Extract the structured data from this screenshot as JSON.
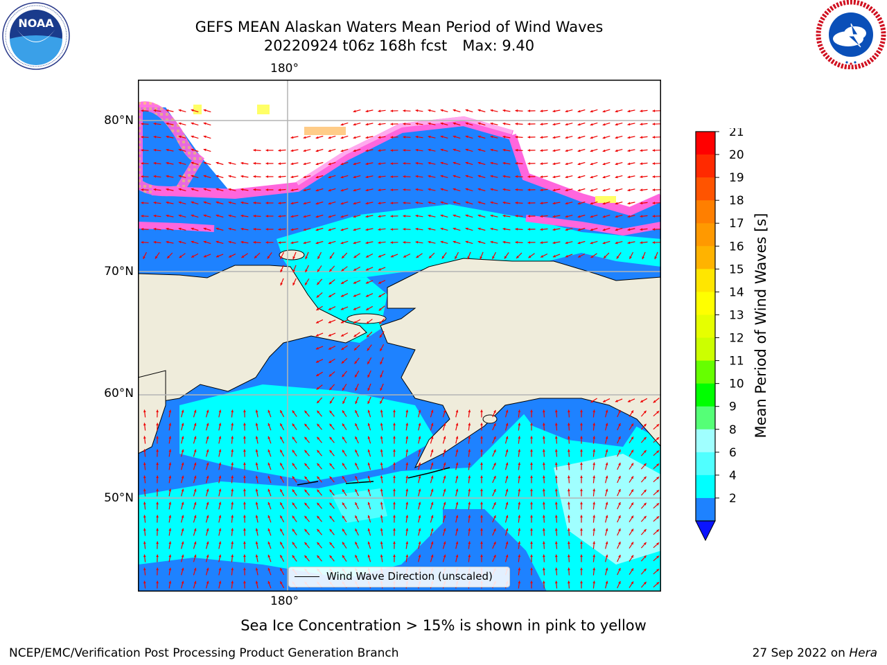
{
  "header": {
    "title_line1": "GEFS MEAN Alaskan Waters Mean Period of Wind Waves",
    "title_date": "20220924 t06z 168h fcst",
    "title_max": "Max: 9.40"
  },
  "logos": {
    "left": {
      "name": "noaa-logo",
      "text": "NOAA",
      "ring_text": "NATIONAL OCEANIC AND ATMOSPHERIC ADMINISTRATION · U.S. DEPARTMENT OF COMMERCE"
    },
    "right": {
      "name": "nws-logo",
      "ring_text": "NATIONAL WEATHER SERVICE"
    }
  },
  "map": {
    "lon_label_top": "180°",
    "lon_label_bottom": "180°",
    "lat_labels": [
      "80°N",
      "70°N",
      "60°N",
      "50°N"
    ],
    "colors": {
      "land": "#efecdb",
      "ocean_dark": "#1e82ff",
      "ocean_cyan": "#00ffff",
      "ocean_light": "#50ffff",
      "ice_pink": "#ff66dd",
      "ice_yellow": "#ffff66",
      "arrow": "#ee0000",
      "grid": "#b4b4b4"
    },
    "legend_label": "Wind Wave Direction (unscaled)"
  },
  "colorbar": {
    "title": "Mean Period of Wind Waves [s]",
    "ticks": [
      "21",
      "20",
      "19",
      "18",
      "17",
      "16",
      "15",
      "14",
      "13",
      "12",
      "11",
      "10",
      "9",
      "8",
      "6",
      "4",
      "2"
    ],
    "colors": [
      "#ff0000",
      "#ff2a00",
      "#ff5400",
      "#ff7f00",
      "#ff9900",
      "#ffb300",
      "#ffe600",
      "#ffff00",
      "#e6ff00",
      "#ccff00",
      "#66ff00",
      "#00ff00",
      "#55ff77",
      "#a0ffff",
      "#50ffff",
      "#00ffff",
      "#1e82ff"
    ],
    "extend_color": "#0a14ff"
  },
  "footer": {
    "ice_note": "Sea Ice Concentration > 15% is shown in pink to yellow",
    "credit": "NCEP/EMC/Verification Post Processing Product Generation Branch",
    "date": "27 Sep 2022 on",
    "machine": "Hera"
  }
}
